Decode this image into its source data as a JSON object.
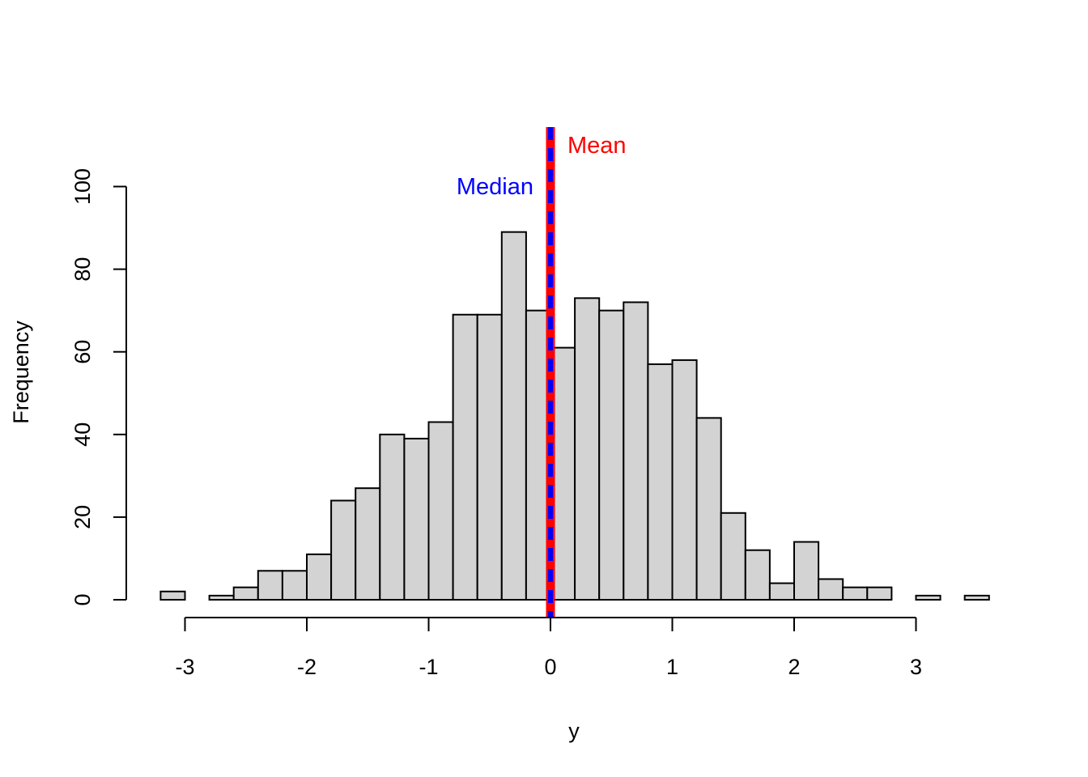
{
  "chart_data": {
    "type": "bar",
    "subtype": "histogram",
    "title": "",
    "xlabel": "y",
    "ylabel": "Frequency",
    "bin_width": 0.2,
    "bin_start": -3.2,
    "values": [
      2,
      0,
      1,
      3,
      7,
      7,
      11,
      24,
      27,
      40,
      39,
      43,
      69,
      69,
      89,
      70,
      61,
      73,
      70,
      72,
      57,
      58,
      44,
      21,
      12,
      4,
      14,
      5,
      3,
      3,
      0,
      1,
      0,
      1
    ],
    "xlim": [
      -3.2,
      3.6
    ],
    "ylim": [
      0,
      110
    ],
    "x_ticks": [
      "-3",
      "-2",
      "-1",
      "0",
      "1",
      "2",
      "3"
    ],
    "x_tick_values": [
      -3,
      -2,
      -1,
      0,
      1,
      2,
      3
    ],
    "y_ticks": [
      "0",
      "20",
      "40",
      "60",
      "80",
      "100"
    ],
    "y_tick_values": [
      0,
      20,
      40,
      60,
      80,
      100
    ],
    "bar_color": "#d3d3d3",
    "grid": false,
    "reference_lines": [
      {
        "label": "Mean",
        "x": 0.0,
        "color": "#ff0000",
        "style": "solid"
      },
      {
        "label": "Median",
        "x": 0.0,
        "color": "#0000ff",
        "style": "dashed"
      }
    ]
  }
}
